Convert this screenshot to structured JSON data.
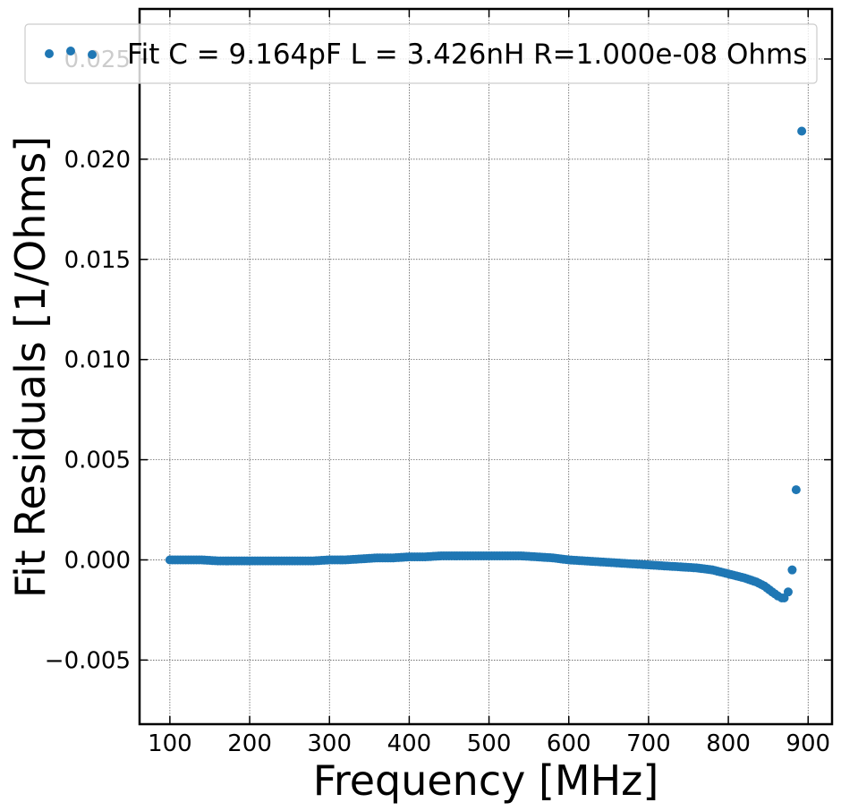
{
  "chart_data": {
    "type": "scatter",
    "xlabel": "Frequency [MHz]",
    "ylabel": "Fit Residuals [1/Ohms]",
    "xlim": [
      62,
      930
    ],
    "ylim": [
      -0.0082,
      0.0275
    ],
    "xticks": [
      100,
      200,
      300,
      400,
      500,
      600,
      700,
      800,
      900
    ],
    "xtick_labels": [
      "100",
      "200",
      "300",
      "400",
      "500",
      "600",
      "700",
      "800",
      "900"
    ],
    "yticks": [
      -0.005,
      0.0,
      0.005,
      0.01,
      0.015,
      0.02,
      0.025
    ],
    "ytick_labels": [
      "−0.005",
      "0.000",
      "0.005",
      "0.010",
      "0.015",
      "0.020",
      "0.025"
    ],
    "grid": true,
    "legend_position": "top",
    "marker_color": "#1f77b4",
    "series": [
      {
        "name": "Fit C = 9.164pF L = 3.426nH R=1.000e-08 Ohms",
        "x": [
          100,
          120,
          140,
          160,
          180,
          200,
          220,
          240,
          260,
          280,
          300,
          320,
          340,
          360,
          380,
          400,
          420,
          440,
          460,
          480,
          500,
          520,
          540,
          560,
          580,
          600,
          620,
          640,
          660,
          680,
          700,
          720,
          740,
          760,
          780,
          800,
          820,
          835,
          845,
          855,
          862,
          867,
          870,
          875,
          880,
          885,
          892
        ],
        "y": [
          0.0,
          0.0,
          0.0,
          -5e-05,
          -5e-05,
          -5e-05,
          -5e-05,
          -5e-05,
          -5e-05,
          -5e-05,
          0.0,
          0.0,
          5e-05,
          0.0001,
          0.0001,
          0.00015,
          0.00015,
          0.0002,
          0.0002,
          0.0002,
          0.0002,
          0.0002,
          0.0002,
          0.00015,
          0.0001,
          0.0,
          -5e-05,
          -0.0001,
          -0.00015,
          -0.0002,
          -0.00025,
          -0.0003,
          -0.00035,
          -0.0004,
          -0.0005,
          -0.0007,
          -0.0009,
          -0.0011,
          -0.0013,
          -0.0016,
          -0.0018,
          -0.0019,
          -0.0019,
          -0.0016,
          -0.0005,
          0.0035,
          0.0214
        ]
      }
    ]
  }
}
